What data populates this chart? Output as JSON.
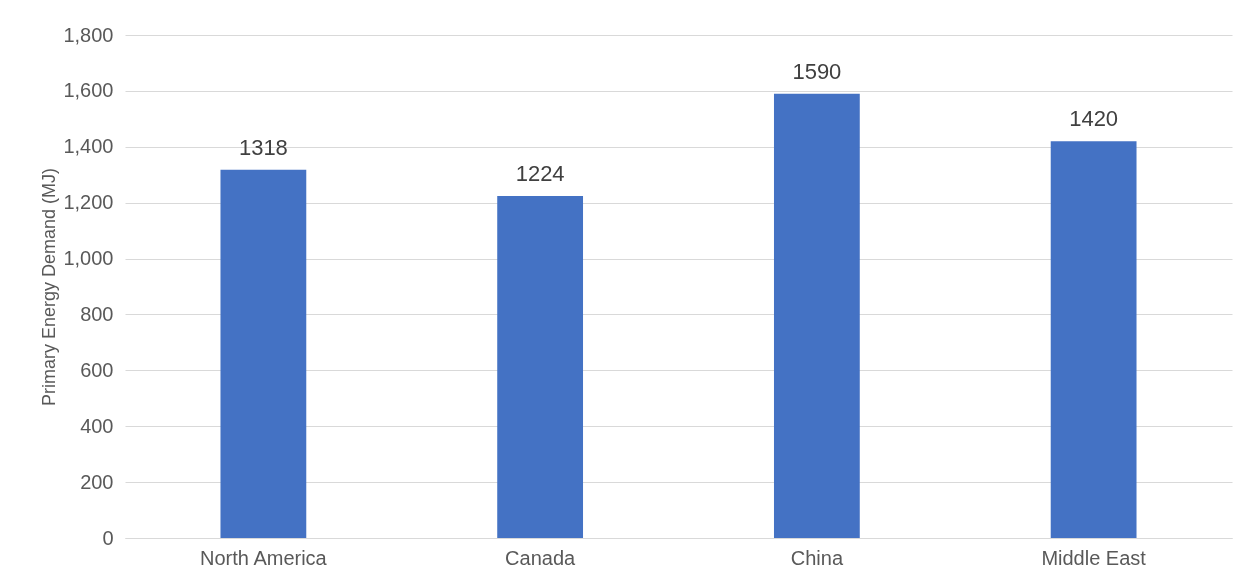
{
  "chart_data": {
    "type": "bar",
    "ylabel": "Primary Energy Demand (MJ)",
    "categories": [
      "North America",
      "Canada",
      "China",
      "Middle East"
    ],
    "values": [
      1318,
      1224,
      1590,
      1420
    ],
    "color": "#4472c4",
    "ylim": [
      0,
      1800
    ],
    "yticks": [
      0,
      200,
      400,
      600,
      800,
      {
        "value": 1000,
        "label": "1,000"
      },
      {
        "value": 1200,
        "label": "1,200"
      },
      {
        "value": 1400,
        "label": "1,400"
      },
      {
        "value": 1600,
        "label": "1,600"
      },
      {
        "value": 1800,
        "label": "1,800"
      }
    ],
    "grid": "y",
    "data_labels": true
  }
}
